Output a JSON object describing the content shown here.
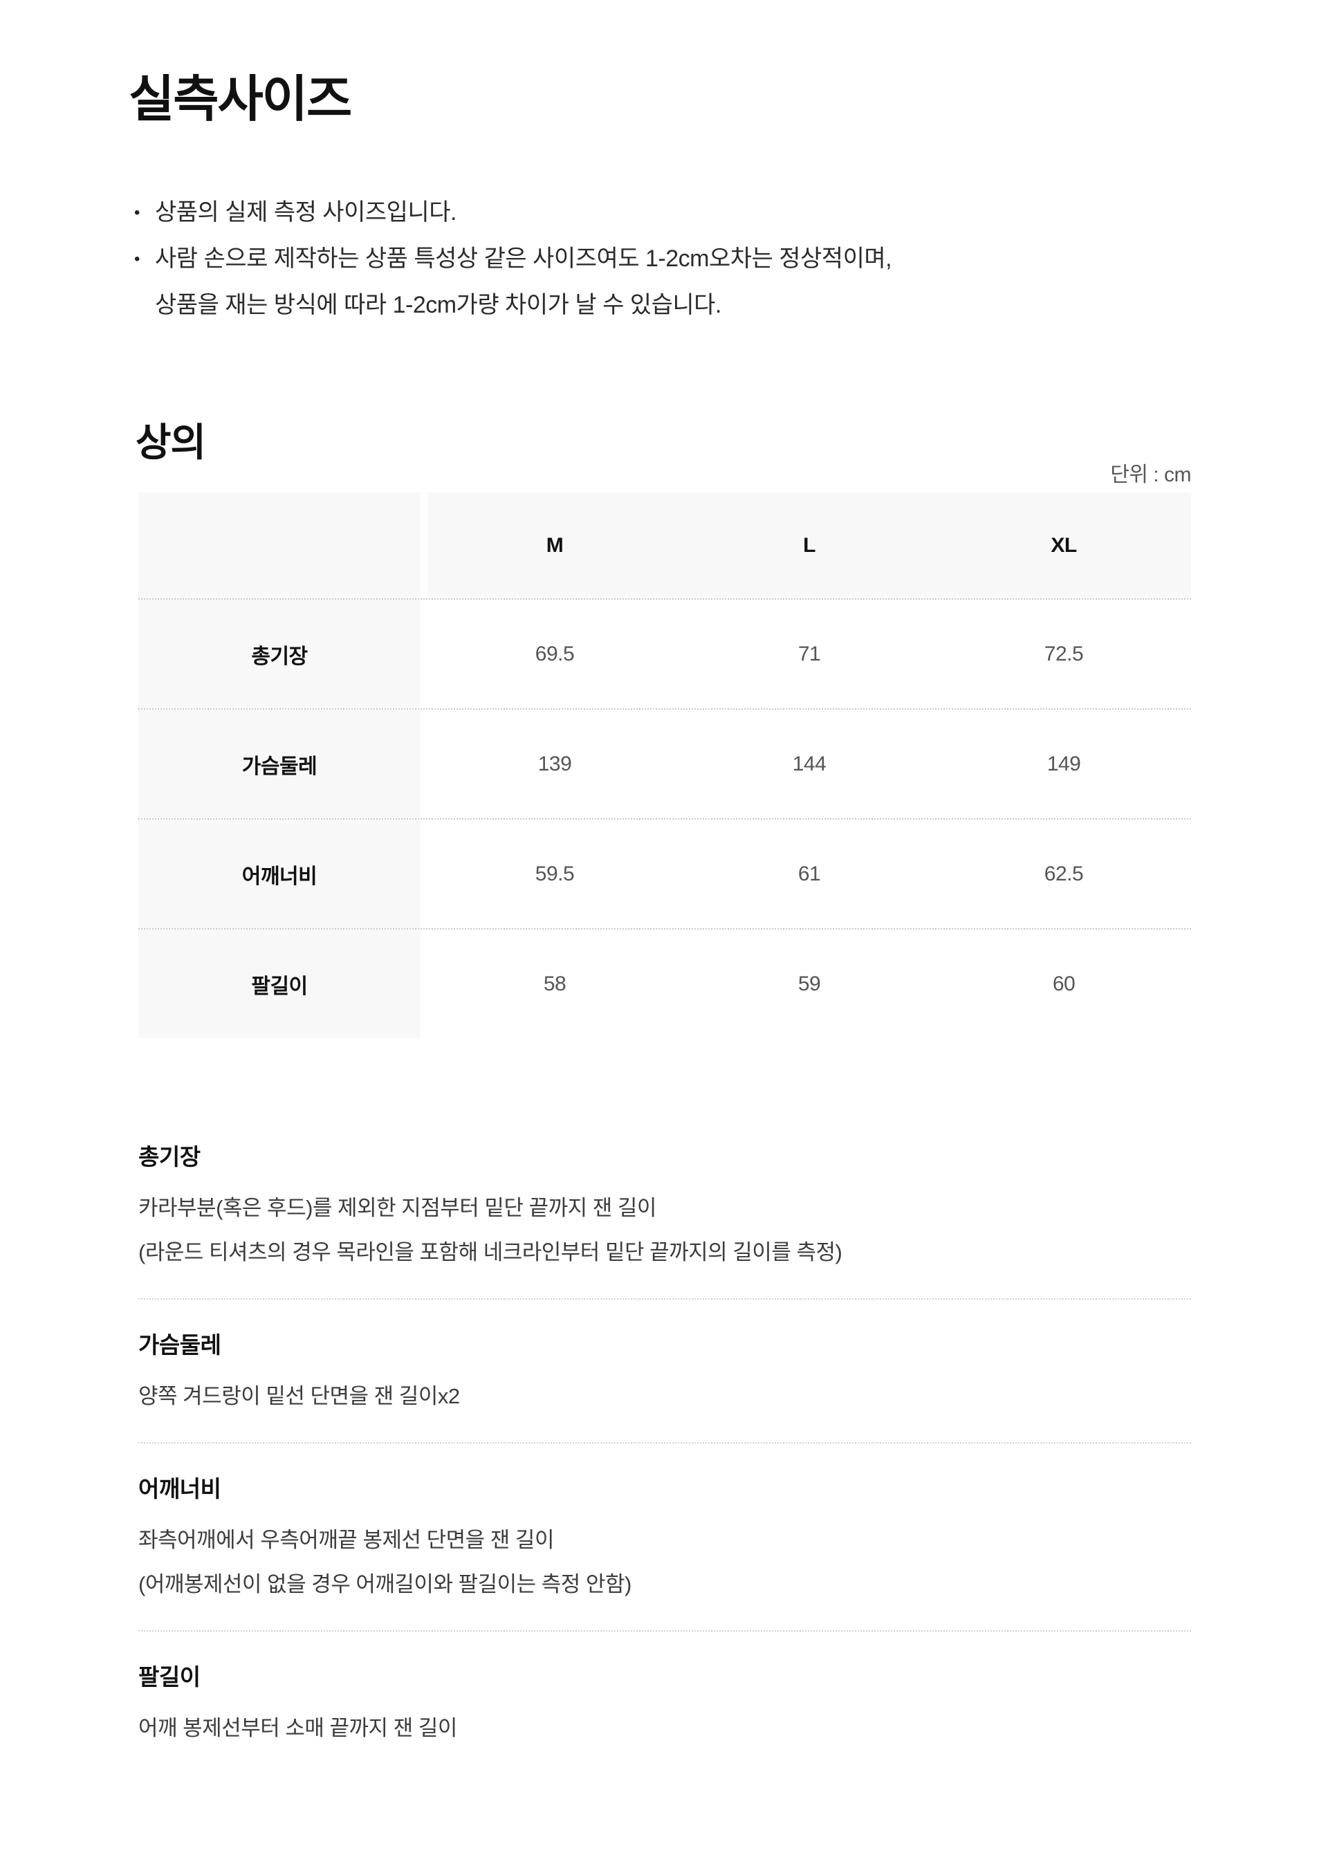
{
  "page": {
    "title": "실측사이즈",
    "bullet_icon": "•",
    "notices": [
      {
        "lines": [
          "상품의 실제 측정 사이즈입니다."
        ]
      },
      {
        "lines": [
          "사람 손으로 제작하는 상품 특성상 같은 사이즈여도 1-2cm오차는 정상적이며,",
          "상품을 재는 방식에 따라 1-2cm가량 차이가 날 수 있습니다."
        ]
      }
    ],
    "garment_section": {
      "title": "상의",
      "unit_label": "단위 : cm"
    },
    "table": {
      "columns": [
        "M",
        "L",
        "XL"
      ],
      "rows": [
        {
          "label": "총기장",
          "values": [
            "69.5",
            "71",
            "72.5"
          ]
        },
        {
          "label": "가슴둘레",
          "values": [
            "139",
            "144",
            "149"
          ]
        },
        {
          "label": "어깨너비",
          "values": [
            "59.5",
            "61",
            "62.5"
          ]
        },
        {
          "label": "팔길이",
          "values": [
            "58",
            "59",
            "60"
          ]
        }
      ]
    },
    "definitions": [
      {
        "term": "총기장",
        "lines": [
          "카라부분(혹은 후드)를 제외한 지점부터 밑단 끝까지 잰 길이",
          "(라운드 티셔츠의 경우 목라인을 포함해 네크라인부터 밑단 끝까지의 길이를 측정)"
        ]
      },
      {
        "term": "가슴둘레",
        "lines": [
          "양쪽 겨드랑이 밑선 단면을 잰 길이x2"
        ]
      },
      {
        "term": "어깨너비",
        "lines": [
          "좌측어깨에서 우측어깨끝 봉제선 단면을 잰 길이",
          "(어깨봉제선이 없을 경우 어깨길이와 팔길이는 측정 안함)"
        ]
      },
      {
        "term": "팔길이",
        "lines": [
          "어깨 봉제선부터 소매 끝까지 잰 길이"
        ]
      }
    ],
    "colors": {
      "row_background": "#f8f8f8",
      "value_text": "#555555",
      "divider": "#c8c8c8"
    }
  }
}
